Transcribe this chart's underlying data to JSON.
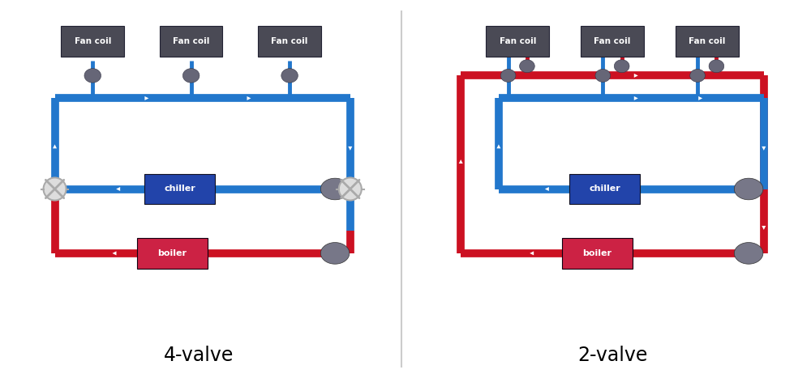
{
  "bg_color": "#ffffff",
  "blue": "#2277cc",
  "blue_dark": "#1155aa",
  "red": "#cc1122",
  "dark_blue_box": "#2244aa",
  "dark_red_box": "#cc2244",
  "gray_box": "#4a4a55",
  "gray_pump": "#777788",
  "white": "#ffffff",
  "pipe_lw": 7,
  "pipe_lw_thin": 3.5,
  "title_4valve": "4-valve",
  "title_2valve": "2-valve",
  "chiller_label": "chiller",
  "boiler_label": "boiler",
  "fancoil_label": "Fan coil",
  "valve_color": "#aaaaaa",
  "valve_lw": 2.0
}
